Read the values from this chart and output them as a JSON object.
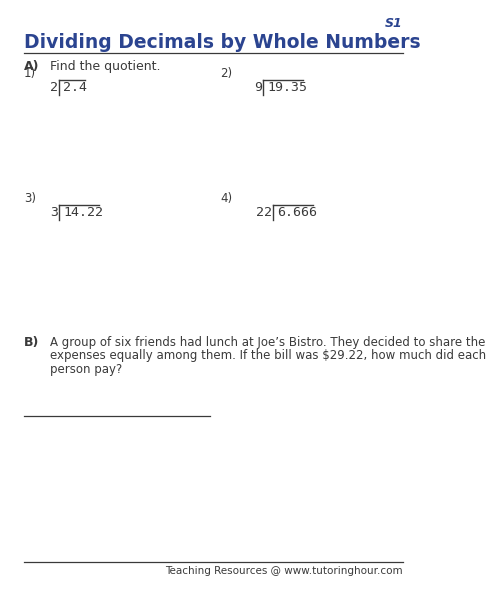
{
  "title": "Dividing Decimals by Whole Numbers",
  "page_label": "S1",
  "section_a_label": "A)",
  "section_a_instruction": "Find the quotient.",
  "problems": [
    {
      "number": "1)",
      "divisor": "2",
      "dividend": "2.4",
      "col": "left"
    },
    {
      "number": "2)",
      "divisor": "9",
      "dividend": "19.35",
      "col": "right"
    },
    {
      "number": "3)",
      "divisor": "3",
      "dividend": "14.22",
      "col": "left"
    },
    {
      "number": "4)",
      "divisor": "22",
      "dividend": "6.666",
      "col": "right"
    }
  ],
  "section_b_label": "B)",
  "section_b_line1": "A group of six friends had lunch at Joe’s Bistro. They decided to share the",
  "section_b_line2": "expenses equally among them. If the bill was $29.22, how much did each",
  "section_b_line3": "person pay?",
  "footer_text": "Teaching Resources @ www.tutoringhour.com",
  "title_color": "#2B4490",
  "text_color": "#3a3a3a",
  "label_bold_color": "#3a3a3a",
  "line_color": "#3a3a3a",
  "footer_color": "#3a3a3a",
  "bg_color": "#FFFFFF",
  "title_fontsize": 13.5,
  "label_fontsize": 9,
  "problem_fontsize": 9.5,
  "footer_fontsize": 7.5
}
